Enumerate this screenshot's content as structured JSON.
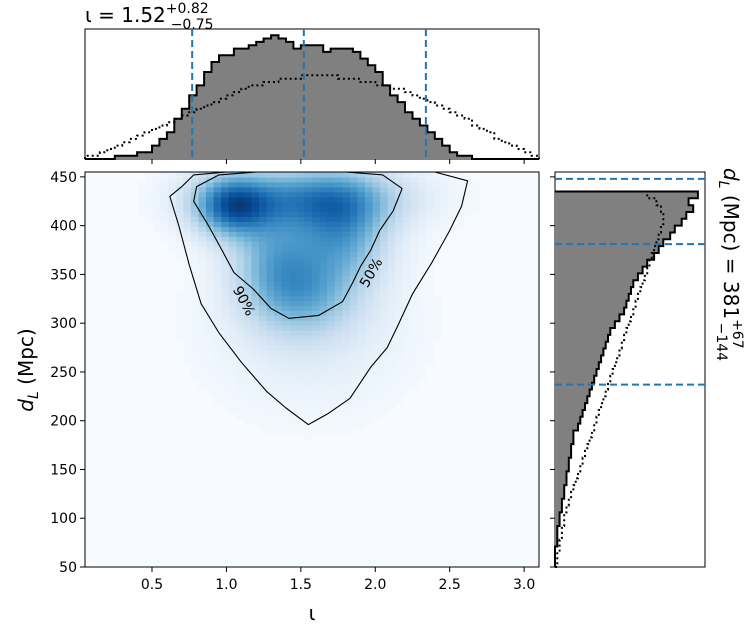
{
  "chart_data": [
    {
      "type": "histogram",
      "panel": "top",
      "title": "ι = 1.52",
      "title_sup": "+0.82",
      "title_sub": "−0.75",
      "xlim": [
        0.05,
        3.1
      ],
      "bin_width": 0.05,
      "bin_start": 0.05,
      "posterior_counts": [
        0,
        0,
        0,
        0,
        1,
        1,
        1,
        2,
        2,
        4,
        6,
        8,
        12,
        15,
        19,
        22,
        26,
        29,
        31,
        31,
        33,
        33,
        34,
        35,
        36,
        37,
        36,
        35,
        33,
        34,
        34,
        34,
        32,
        33,
        33,
        33,
        32,
        30,
        28,
        26,
        22,
        19,
        17,
        14,
        12,
        10,
        8,
        6,
        4,
        2,
        1,
        1,
        0,
        0,
        0,
        0,
        0,
        0,
        0,
        0,
        0
      ],
      "prior_counts": [
        1,
        1,
        2,
        3,
        4,
        5,
        6,
        7,
        8,
        9,
        10,
        11,
        12,
        13,
        14,
        15,
        16,
        17,
        18,
        19,
        20,
        21,
        22,
        22,
        23,
        23,
        24,
        24,
        24,
        25,
        25,
        25,
        25,
        25,
        24,
        24,
        24,
        23,
        23,
        22,
        22,
        21,
        21,
        20,
        19,
        18,
        17,
        16,
        15,
        14,
        13,
        12,
        10,
        9,
        8,
        6,
        5,
        4,
        3,
        2,
        1
      ],
      "dashed_lines_x": [
        0.77,
        1.52,
        2.34
      ],
      "colors": {
        "posterior_fill": "#808080",
        "posterior_edge": "#000000",
        "dashed": "#1f77b4"
      }
    },
    {
      "type": "heatmap",
      "panel": "main",
      "xlabel": "ι",
      "ylabel": "d",
      "ylabel_sub": "L",
      "ylabel_unit": " (Mpc)",
      "xlim": [
        0.05,
        3.1
      ],
      "ylim": [
        50,
        455
      ],
      "xticks": [
        "0.5",
        "1.0",
        "1.5",
        "2.0",
        "2.5",
        "3.0"
      ],
      "xtick_values": [
        0.5,
        1.0,
        1.5,
        2.0,
        2.5,
        3.0
      ],
      "yticks": [
        "50",
        "100",
        "150",
        "200",
        "250",
        "300",
        "350",
        "400",
        "450"
      ],
      "ytick_values": [
        50,
        100,
        150,
        200,
        250,
        300,
        350,
        400,
        450
      ],
      "colormap": "Blues",
      "density_peaks": [
        {
          "x": 1.03,
          "y": 420,
          "amp": 1.0,
          "sx": 0.18,
          "sy": 22
        },
        {
          "x": 1.32,
          "y": 370,
          "amp": 0.55,
          "sx": 0.2,
          "sy": 35
        },
        {
          "x": 1.78,
          "y": 395,
          "amp": 0.75,
          "sx": 0.22,
          "sy": 35
        },
        {
          "x": 1.52,
          "y": 330,
          "amp": 0.55,
          "sx": 0.25,
          "sy": 30
        },
        {
          "x": 1.55,
          "y": 430,
          "amp": 0.8,
          "sx": 0.45,
          "sy": 22
        },
        {
          "x": 1.55,
          "y": 300,
          "amp": 0.2,
          "sx": 0.45,
          "sy": 60
        }
      ],
      "contours": [
        {
          "label": "50%",
          "label_at": [
            1.97,
            352
          ],
          "points": [
            [
              0.8,
              440
            ],
            [
              0.95,
              452
            ],
            [
              1.2,
              455
            ],
            [
              1.5,
              455
            ],
            [
              1.8,
              455
            ],
            [
              2.05,
              452
            ],
            [
              2.18,
              438
            ],
            [
              2.12,
              415
            ],
            [
              2.03,
              395
            ],
            [
              1.97,
              375
            ],
            [
              1.9,
              358
            ],
            [
              1.85,
              342
            ],
            [
              1.78,
              322
            ],
            [
              1.62,
              308
            ],
            [
              1.42,
              305
            ],
            [
              1.3,
              315
            ],
            [
              1.18,
              335
            ],
            [
              1.05,
              352
            ],
            [
              0.97,
              375
            ],
            [
              0.88,
              400
            ],
            [
              0.78,
              425
            ],
            [
              0.8,
              440
            ]
          ]
        },
        {
          "label": "90%",
          "label_at": [
            1.12,
            323
          ],
          "points": [
            [
              0.7,
              440
            ],
            [
              0.78,
              452
            ],
            [
              1.0,
              455
            ],
            [
              1.5,
              455
            ],
            [
              2.0,
              455
            ],
            [
              2.4,
              455
            ],
            [
              2.62,
              446
            ],
            [
              2.58,
              420
            ],
            [
              2.5,
              395
            ],
            [
              2.38,
              362
            ],
            [
              2.25,
              330
            ],
            [
              2.15,
              297
            ],
            [
              2.08,
              275
            ],
            [
              1.97,
              255
            ],
            [
              1.83,
              223
            ],
            [
              1.68,
              207
            ],
            [
              1.55,
              196
            ],
            [
              1.4,
              213
            ],
            [
              1.27,
              230
            ],
            [
              1.1,
              260
            ],
            [
              0.95,
              290
            ],
            [
              0.83,
              320
            ],
            [
              0.75,
              360
            ],
            [
              0.68,
              400
            ],
            [
              0.62,
              430
            ],
            [
              0.7,
              440
            ]
          ]
        }
      ]
    },
    {
      "type": "histogram",
      "panel": "right",
      "orientation": "horizontal",
      "title": "d",
      "title_sub_var": "L",
      "title_unit": " (Mpc) = 381",
      "title_sup": "+67",
      "title_sub": "−144",
      "ylim": [
        50,
        455
      ],
      "bin_width": 7,
      "bin_start": 50,
      "posterior_counts": [
        0,
        0,
        0,
        1,
        1,
        1,
        2,
        2,
        3,
        3,
        4,
        4,
        5,
        5,
        6,
        6,
        7,
        7,
        8,
        8,
        10,
        11,
        12,
        13,
        14,
        15,
        16,
        17,
        18,
        19,
        20,
        21,
        22,
        23,
        24,
        26,
        28,
        30,
        31,
        32,
        33,
        34,
        36,
        38,
        40,
        43,
        45,
        47,
        50,
        52,
        55,
        57,
        60,
        58,
        62
      ],
      "prior_counts": [
        1,
        1,
        2,
        2,
        3,
        3,
        4,
        4,
        5,
        6,
        7,
        8,
        9,
        10,
        11,
        12,
        13,
        14,
        15,
        16,
        17,
        18,
        19,
        20,
        21,
        22,
        23,
        24,
        25,
        26,
        27,
        28,
        29,
        30,
        31,
        32,
        33,
        34,
        35,
        36,
        37,
        38,
        39,
        40,
        41,
        42,
        43,
        44,
        45,
        46,
        47,
        47,
        46,
        44,
        40
      ],
      "dashed_lines_y": [
        237,
        381,
        448
      ],
      "colors": {
        "posterior_fill": "#808080",
        "posterior_edge": "#000000",
        "dashed": "#1f77b4"
      }
    }
  ]
}
